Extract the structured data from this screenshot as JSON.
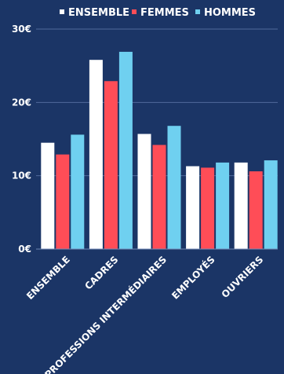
{
  "chart_data": {
    "type": "bar",
    "title": "",
    "xlabel": "",
    "ylabel": "",
    "categories": [
      "ENSEMBLE",
      "CADRES",
      "PROFESSIONS INTERMÉDIAIRES",
      "EMPLOYÉS",
      "OUVRIERS"
    ],
    "series": [
      {
        "name": "ENSEMBLE",
        "color": "#ffffff",
        "values": [
          14.5,
          25.8,
          15.7,
          11.3,
          11.8
        ]
      },
      {
        "name": "FEMMES",
        "color": "#ff4d57",
        "values": [
          12.9,
          22.9,
          14.2,
          11.1,
          10.6
        ]
      },
      {
        "name": "HOMMES",
        "color": "#6fd0f0",
        "values": [
          15.6,
          26.9,
          16.8,
          11.8,
          12.1
        ]
      }
    ],
    "ylim": [
      0,
      30
    ],
    "yticks": [
      {
        "value": 0,
        "label": "0€"
      },
      {
        "value": 10,
        "label": "10€"
      },
      {
        "value": 20,
        "label": "20€"
      },
      {
        "value": 30,
        "label": "30€"
      }
    ],
    "grid": true,
    "legend_position": "top"
  }
}
